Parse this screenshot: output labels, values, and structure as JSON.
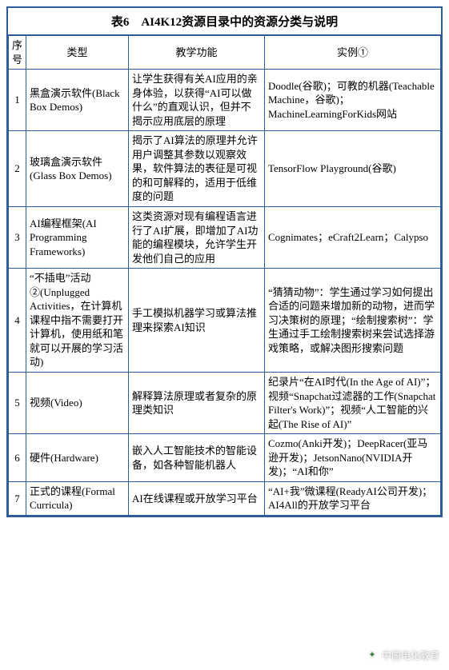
{
  "title": "表6　AI4K12资源目录中的资源分类与说明",
  "columns": {
    "idx": "序号",
    "type": "类型",
    "func": "教学功能",
    "example": "实例①"
  },
  "rows": [
    {
      "idx": "1",
      "type": "黑盒演示软件(Black Box Demos)",
      "func": "让学生获得有关AI应用的亲身体验，以获得“AI可以做什么”的直观认识，但并不揭示应用底层的原理",
      "example": "Doodle(谷歌)；可教的机器(Teachable Machine，谷歌)；MachineLearningForKids网站"
    },
    {
      "idx": "2",
      "type": "玻璃盒演示软件(Glass Box Demos)",
      "func": "揭示了AI算法的原理并允许用户调整其参数以观察效果，软件算法的表征是可视的和可解释的，适用于低维度的问题",
      "example": "TensorFlow Playground(谷歌)"
    },
    {
      "idx": "3",
      "type": "AI编程框架(AI Programming Frameworks)",
      "func": "这类资源对现有编程语言进行了AI扩展，即增加了AI功能的编程模块，允许学生开发他们自己的应用",
      "example": "Cognimates；eCraft2Learn；Calypso"
    },
    {
      "idx": "4",
      "type": "“不插电”活动②(Unplugged Activities，在计算机课程中指不需要打开计算机，使用纸和笔就可以开展的学习活动)",
      "func": "手工模拟机器学习或算法推理来探索AI知识",
      "example": "“猜猜动物”：学生通过学习如何提出合适的问题来增加新的动物，进而学习决策树的原理；“绘制搜索树”：学生通过手工绘制搜索树来尝试选择游戏策略，或解决图形搜索问题"
    },
    {
      "idx": "5",
      "type": "视频(Video)",
      "func": "解释算法原理或者复杂的原理类知识",
      "example": "纪录片“在AI时代(In the Age of AI)”；视频“Snapchat过滤器的工作(Snapchat Filter's Work)”；视频“人工智能的兴起(The Rise of AI)”"
    },
    {
      "idx": "6",
      "type": "硬件(Hardware)",
      "func": "嵌入人工智能技术的智能设备，如各种智能机器人",
      "example": "Cozmo(Anki开发)；DeepRacer(亚马逊开发)；JetsonNano(NVIDIA开发)；“AI和你”"
    },
    {
      "idx": "7",
      "type": "正式的课程(Formal Curricula)",
      "func": "AI在线课程或开放学习平台",
      "example": "“AI+我”微课程(ReadyAI公司开发)；AI4All的开放学习平台"
    }
  ],
  "watermark": "中国电化教育",
  "colors": {
    "border": "#2e5c9a",
    "background": "#ffffff",
    "text": "#000000"
  }
}
